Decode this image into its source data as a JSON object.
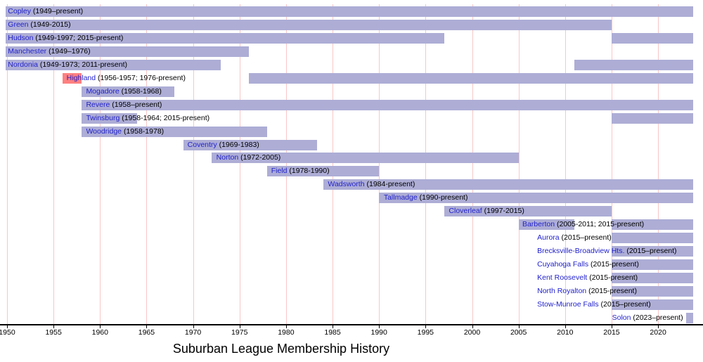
{
  "colors": {
    "bar": "#adadd6",
    "highlight_bar": "#ff8080",
    "gridline": "#f9c6c6",
    "label_link": "#2222cc",
    "label_date": "#000000",
    "axis": "#000000",
    "background": "#ffffff"
  },
  "chart_data": {
    "type": "bar",
    "subtype": "timeline-gantt",
    "title": "Suburban League Membership History",
    "x_axis": {
      "min": 1949.85,
      "max": 2024.3,
      "present_year": 2023.8,
      "ticks": [
        1950,
        1955,
        1960,
        1965,
        1970,
        1975,
        1980,
        1985,
        1990,
        1995,
        2000,
        2005,
        2010,
        2015,
        2020
      ],
      "grid": true
    },
    "rows": [
      {
        "name": "Copley",
        "dates": "(1949–present)",
        "label_year": 1950.1,
        "periods": [
          [
            1949,
            "present"
          ]
        ]
      },
      {
        "name": "Green",
        "dates": "(1949-2015)",
        "label_year": 1950.1,
        "periods": [
          [
            1949,
            2015
          ]
        ]
      },
      {
        "name": "Hudson",
        "dates": "(1949-1997; 2015-present)",
        "label_year": 1950.1,
        "periods": [
          [
            1949,
            1997
          ],
          [
            2015,
            "present"
          ]
        ]
      },
      {
        "name": "Manchester",
        "dates": "(1949–1976)",
        "label_year": 1950.1,
        "periods": [
          [
            1949,
            1976
          ]
        ]
      },
      {
        "name": "Nordonia",
        "dates": "(1949-1973; 2011-present)",
        "label_year": 1950.1,
        "periods": [
          [
            1949,
            1973
          ],
          [
            2011,
            "present"
          ]
        ]
      },
      {
        "name": "Highland",
        "dates": "(1956-1957; 1976-present)",
        "label_year": 1956.4,
        "periods": [
          [
            1956,
            1958,
            "highlight"
          ],
          [
            1976,
            "present"
          ]
        ]
      },
      {
        "name": "Mogadore",
        "dates": "(1958-1968)",
        "label_year": 1958.5,
        "periods": [
          [
            1958,
            1968
          ]
        ]
      },
      {
        "name": "Revere",
        "dates": "(1958–present)",
        "label_year": 1958.5,
        "periods": [
          [
            1958,
            "present"
          ]
        ]
      },
      {
        "name": "Twinsburg",
        "dates": "(1958-1964; 2015-present)",
        "label_year": 1958.5,
        "periods": [
          [
            1958,
            1964
          ],
          [
            2015,
            "present"
          ]
        ]
      },
      {
        "name": "Woodridge",
        "dates": "(1958-1978)",
        "label_year": 1958.5,
        "periods": [
          [
            1958,
            1978
          ]
        ]
      },
      {
        "name": "Coventry",
        "dates": "(1969-1983)",
        "label_year": 1969.4,
        "periods": [
          [
            1969,
            1983.3
          ]
        ]
      },
      {
        "name": "Norton",
        "dates": "(1972-2005)",
        "label_year": 1972.5,
        "periods": [
          [
            1972,
            2005
          ]
        ]
      },
      {
        "name": "Field",
        "dates": "(1978-1990)",
        "label_year": 1978.4,
        "periods": [
          [
            1978,
            1990
          ]
        ]
      },
      {
        "name": "Wadsworth",
        "dates": "(1984-present)",
        "label_year": 1984.5,
        "periods": [
          [
            1984,
            "present"
          ]
        ]
      },
      {
        "name": "Tallmadge",
        "dates": "(1990-present)",
        "label_year": 1990.5,
        "periods": [
          [
            1990,
            "present"
          ]
        ]
      },
      {
        "name": "Cloverleaf",
        "dates": "(1997-2015)",
        "label_year": 1997.5,
        "periods": [
          [
            1997,
            2015
          ]
        ]
      },
      {
        "name": "Barberton",
        "dates": "(2005-2011; 2015-present)",
        "label_year": 2005.4,
        "periods": [
          [
            2005,
            2011
          ],
          [
            2015,
            "present"
          ]
        ]
      },
      {
        "name": "Aurora",
        "dates": "(2015–present)",
        "label_year": 2007.0,
        "periods": [
          [
            2015,
            "present"
          ]
        ]
      },
      {
        "name": "Brecksville-Broadview Hts.",
        "dates": "(2015–present)",
        "label_year": 2007.0,
        "periods": [
          [
            2015,
            "present"
          ]
        ]
      },
      {
        "name": "Cuyahoga Falls",
        "dates": "(2015-present)",
        "label_year": 2007.0,
        "periods": [
          [
            2015,
            "present"
          ]
        ]
      },
      {
        "name": "Kent Roosevelt",
        "dates": "(2015-present)",
        "label_year": 2007.0,
        "periods": [
          [
            2015,
            "present"
          ]
        ]
      },
      {
        "name": "North Royalton",
        "dates": "(2015-present)",
        "label_year": 2007.0,
        "periods": [
          [
            2015,
            "present"
          ]
        ]
      },
      {
        "name": "Stow-Munroe Falls",
        "dates": "(2015–present)",
        "label_year": 2007.0,
        "periods": [
          [
            2015,
            "present"
          ]
        ]
      },
      {
        "name": "Solon",
        "dates": "(2023–present)",
        "label_year": 2015.05,
        "periods": [
          [
            2023,
            "present"
          ]
        ]
      }
    ]
  }
}
